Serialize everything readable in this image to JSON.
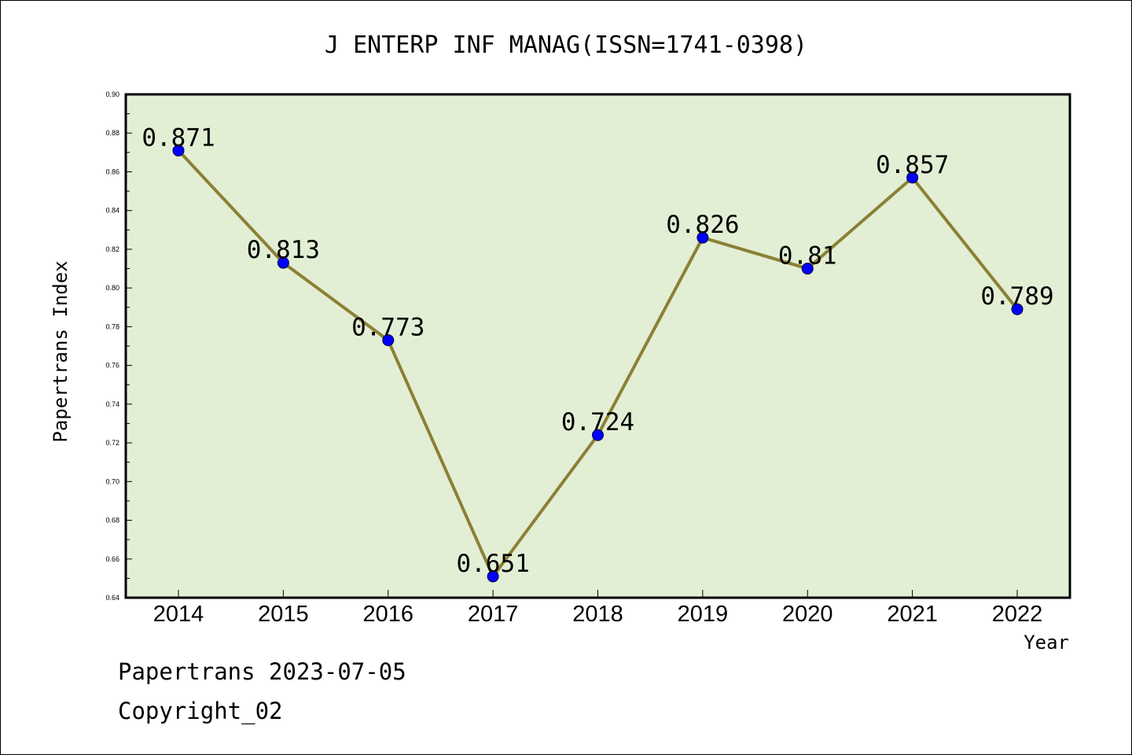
{
  "chart_data": {
    "type": "line",
    "title": "J ENTERP INF MANAG(ISSN=1741-0398)",
    "xlabel": "Year",
    "ylabel": "Papertrans Index",
    "categories": [
      "2014",
      "2015",
      "2016",
      "2017",
      "2018",
      "2019",
      "2020",
      "2021",
      "2022"
    ],
    "values": [
      0.871,
      0.813,
      0.773,
      0.651,
      0.724,
      0.826,
      0.81,
      0.857,
      0.789
    ],
    "data_labels": [
      "0.871",
      "0.813",
      "0.773",
      "0.651",
      "0.724",
      "0.826",
      "0.81",
      "0.857",
      "0.789"
    ],
    "ylim": [
      0.64,
      0.9
    ],
    "yticks": [
      "0.64",
      "0.66",
      "0.68",
      "0.70",
      "0.72",
      "0.74",
      "0.76",
      "0.78",
      "0.80",
      "0.82",
      "0.84",
      "0.86",
      "0.88",
      "0.90"
    ],
    "grid": false,
    "colors": {
      "plot_background": "#e2efd5",
      "line": "#8b8035",
      "marker": "#0000ff"
    }
  },
  "footer": {
    "line1": "Papertrans 2023-07-05",
    "line2": "Copyright_02"
  }
}
